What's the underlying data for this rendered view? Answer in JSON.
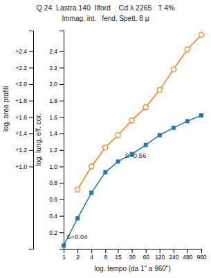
{
  "chart_data": {
    "type": "line",
    "title": "Q 24  Lastra 140  Ilford    Cd λ 2265   T 4%",
    "subtitle": "Immag. int.   fend. Spett. 8 μ",
    "x_label": "log. tempo (da 1\" a 960\")",
    "y_label": "log. lung. eff. cor.",
    "y2_label": "log. area profili",
    "log": "x",
    "grid": false,
    "xlim": [
      1,
      960
    ],
    "xticks": [
      1,
      2,
      4,
      8,
      15,
      30,
      60,
      120,
      240,
      480,
      960
    ],
    "ylim": [
      0.0,
      2.65
    ],
    "yticks": [
      0.2,
      0.4,
      0.6,
      0.8,
      {
        "value": 1.0,
        "label": "1.0"
      },
      1.2,
      1.4,
      1.6,
      1.8,
      {
        "value": 2.0,
        "label": "2.0"
      },
      2.2,
      2.4
    ],
    "y2lim": [
      0.0,
      2.65
    ],
    "y2ticks": [
      {
        "value": 1.0,
        "label": "+1.0"
      },
      {
        "value": 1.2,
        "label": "+1.2"
      },
      {
        "value": 1.4,
        "label": "+1.4"
      },
      {
        "value": 1.6,
        "label": "+1.6"
      },
      {
        "value": 1.8,
        "label": "+1.8"
      },
      {
        "value": 2.0,
        "label": "+2.0"
      },
      {
        "value": 2.2,
        "label": "+2.2"
      },
      {
        "value": 2.4,
        "label": "+2.4"
      }
    ],
    "series": [
      {
        "marker": "square",
        "line_style": "solid",
        "x": [
          1,
          2,
          4,
          8,
          15,
          30,
          60,
          120,
          240,
          480,
          960
        ],
        "values": [
          0.04,
          0.37,
          0.68,
          0.93,
          1.06,
          1.15,
          1.26,
          1.38,
          1.47,
          1.55,
          1.62
        ]
      },
      {
        "marker": "circle-open",
        "line_style": "solid",
        "x": [
          2,
          4,
          8,
          15,
          30,
          60,
          120,
          240,
          480,
          960
        ],
        "values": [
          0.72,
          1.0,
          1.23,
          1.38,
          1.56,
          1.72,
          1.93,
          2.18,
          2.42,
          2.6
        ]
      }
    ],
    "annotations": [
      {
        "text": "S=0.04",
        "x": 1.08,
        "y": 0.1
      },
      {
        "text": "S=0.56",
        "x": 20,
        "y": 1.09
      }
    ]
  }
}
